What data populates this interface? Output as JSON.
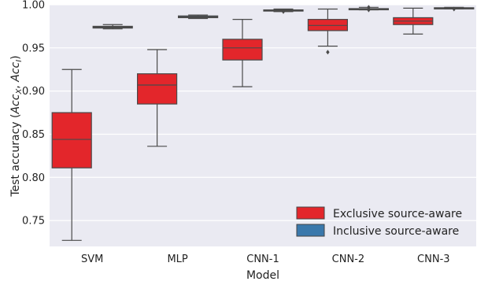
{
  "chart_data": {
    "type": "box",
    "categories": [
      "SVM",
      "MLP",
      "CNN-1",
      "CNN-2",
      "CNN-3"
    ],
    "xlabel": "Model",
    "ylabel_prefix": "Test accuracy (",
    "ylabel_math_1": "Acc",
    "ylabel_sub_1": "X",
    "ylabel_sep": ", ",
    "ylabel_math_2": "Acc",
    "ylabel_sub_2": "I",
    "ylabel_suffix": ")",
    "ylim": [
      0.72,
      1.0
    ],
    "yticks": [
      0.75,
      0.8,
      0.85,
      0.9,
      0.95,
      1.0
    ],
    "ytick_labels": [
      "0.75",
      "0.80",
      "0.85",
      "0.90",
      "0.95",
      "1.00"
    ],
    "grid": true,
    "legend_position": "bottom-right",
    "series": [
      {
        "name": "Exclusive source-aware",
        "color": "#e3262b",
        "boxes": [
          {
            "whisker_low": 0.727,
            "q1": 0.811,
            "median": 0.844,
            "q3": 0.875,
            "whisker_high": 0.925,
            "outliers": []
          },
          {
            "whisker_low": 0.836,
            "q1": 0.885,
            "median": 0.907,
            "q3": 0.92,
            "whisker_high": 0.948,
            "outliers": []
          },
          {
            "whisker_low": 0.905,
            "q1": 0.936,
            "median": 0.95,
            "q3": 0.96,
            "whisker_high": 0.983,
            "outliers": []
          },
          {
            "whisker_low": 0.952,
            "q1": 0.97,
            "median": 0.976,
            "q3": 0.983,
            "whisker_high": 0.995,
            "outliers": [
              0.945
            ]
          },
          {
            "whisker_low": 0.966,
            "q1": 0.977,
            "median": 0.981,
            "q3": 0.985,
            "whisker_high": 0.996,
            "outliers": []
          }
        ]
      },
      {
        "name": "Inclusive source-aware",
        "color": "#3a78ab",
        "boxes": [
          {
            "whisker_low": 0.972,
            "q1": 0.973,
            "median": 0.974,
            "q3": 0.975,
            "whisker_high": 0.977,
            "outliers": []
          },
          {
            "whisker_low": 0.984,
            "q1": 0.985,
            "median": 0.986,
            "q3": 0.987,
            "whisker_high": 0.988,
            "outliers": []
          },
          {
            "whisker_low": 0.992,
            "q1": 0.993,
            "median": 0.9935,
            "q3": 0.994,
            "whisker_high": 0.995,
            "outliers": [
              0.992
            ]
          },
          {
            "whisker_low": 0.994,
            "q1": 0.9945,
            "median": 0.995,
            "q3": 0.9955,
            "whisker_high": 0.997,
            "outliers": [
              0.994,
              0.997
            ]
          },
          {
            "whisker_low": 0.9952,
            "q1": 0.9955,
            "median": 0.996,
            "q3": 0.9965,
            "whisker_high": 0.997,
            "outliers": [
              0.995
            ]
          }
        ]
      }
    ]
  }
}
